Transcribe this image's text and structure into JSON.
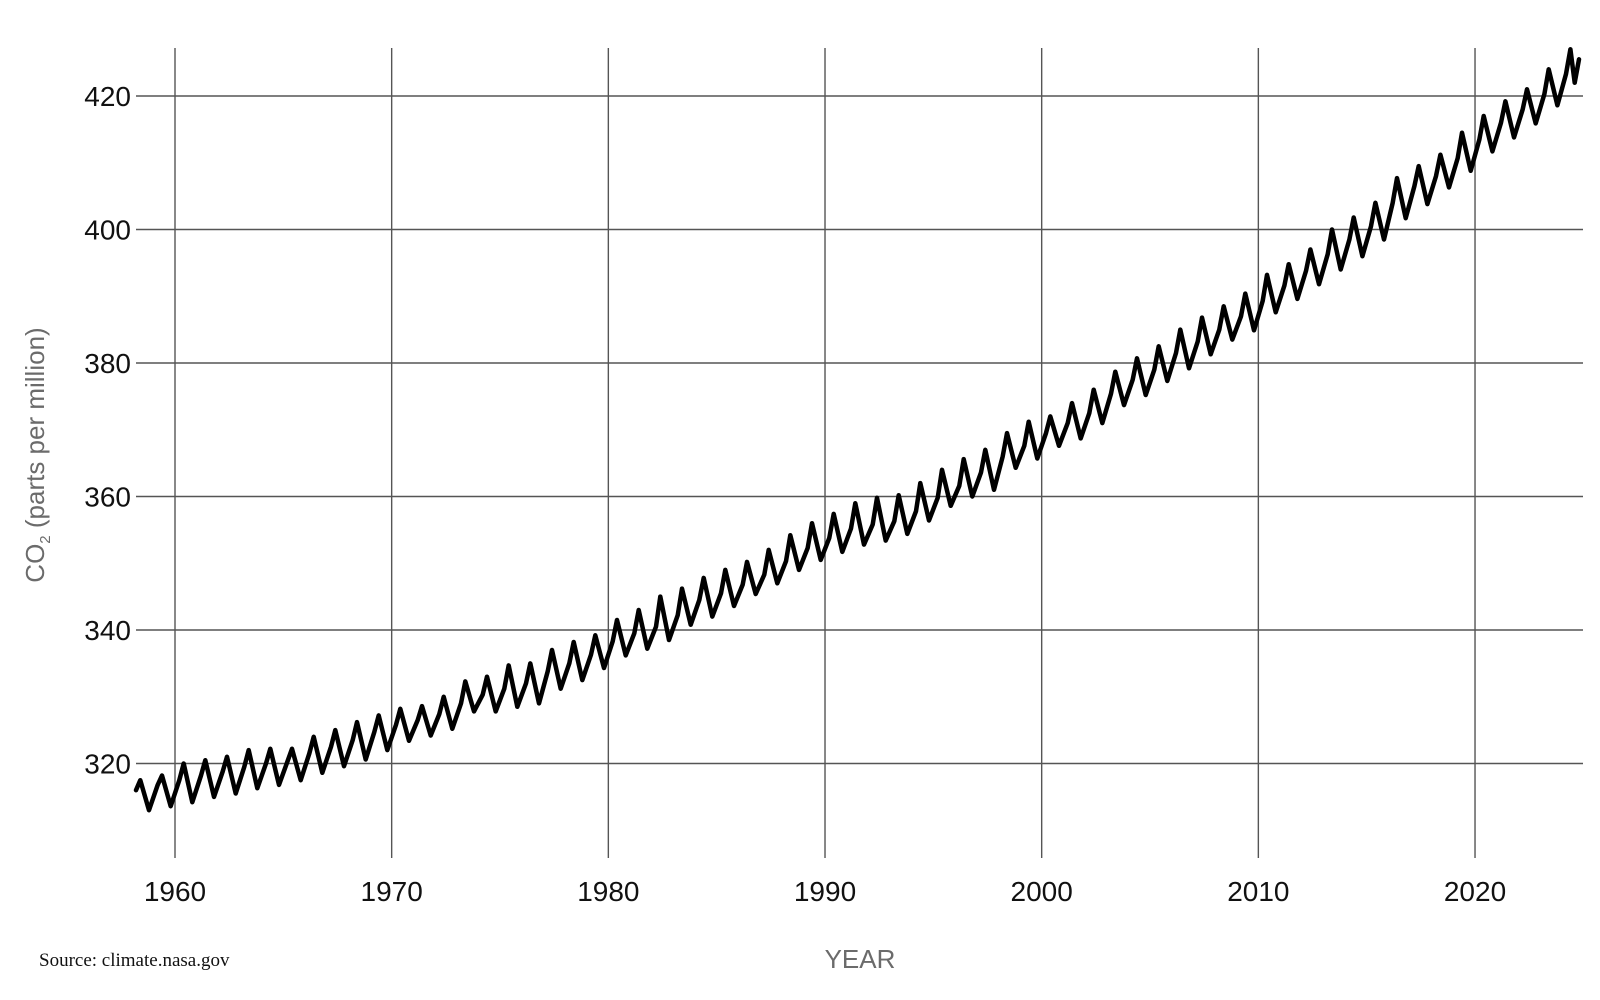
{
  "chart_data": {
    "type": "line",
    "title": "",
    "xlabel": "YEAR",
    "ylabel": "CO",
    "ylabel_subscript": "2",
    "ylabel_suffix": " (parts per million)",
    "xlim": [
      1958.2,
      2024.8
    ],
    "ylim": [
      305,
      427
    ],
    "x_ticks": [
      1960,
      1970,
      1980,
      1990,
      2000,
      2010,
      2020
    ],
    "y_ticks": [
      320,
      340,
      360,
      380,
      400,
      420
    ],
    "x_tick_labels": [
      "1960",
      "1970",
      "1980",
      "1990",
      "2000",
      "2010",
      "2020"
    ],
    "y_tick_labels": [
      "320",
      "340",
      "360",
      "380",
      "400",
      "420"
    ],
    "grid": true,
    "line_color": "#000000",
    "series": [
      {
        "x": [
          1958.2,
          1958.4,
          1958.8,
          1959.2,
          1959.4,
          1959.8,
          1960.2,
          1960.4,
          1960.8,
          1961.2,
          1961.4,
          1961.8,
          1962.2,
          1962.4,
          1962.8,
          1963.2,
          1963.4,
          1963.8,
          1964.2,
          1964.4,
          1964.8,
          1965.2,
          1965.4,
          1965.8,
          1966.2,
          1966.4,
          1966.8,
          1967.2,
          1967.4,
          1967.8,
          1968.2,
          1968.4,
          1968.8,
          1969.2,
          1969.4,
          1969.8,
          1970.2,
          1970.4,
          1970.8,
          1971.2,
          1971.4,
          1971.8,
          1972.2,
          1972.4,
          1972.8,
          1973.2,
          1973.4,
          1973.8,
          1974.2,
          1974.4,
          1974.8,
          1975.2,
          1975.4,
          1975.8,
          1976.2,
          1976.4,
          1976.8,
          1977.2,
          1977.4,
          1977.8,
          1978.2,
          1978.4,
          1978.8,
          1979.2,
          1979.4,
          1979.8,
          1980.2,
          1980.4,
          1980.8,
          1981.2,
          1981.4,
          1981.8,
          1982.2,
          1982.4,
          1982.8,
          1983.2,
          1983.4,
          1983.8,
          1984.2,
          1984.4,
          1984.8,
          1985.2,
          1985.4,
          1985.8,
          1986.2,
          1986.4,
          1986.8,
          1987.2,
          1987.4,
          1987.8,
          1988.2,
          1988.4,
          1988.8,
          1989.2,
          1989.4,
          1989.8,
          1990.2,
          1990.4,
          1990.8,
          1991.2,
          1991.4,
          1991.8,
          1992.2,
          1992.4,
          1992.8,
          1993.2,
          1993.4,
          1993.8,
          1994.2,
          1994.4,
          1994.8,
          1995.2,
          1995.4,
          1995.8,
          1996.2,
          1996.4,
          1996.8,
          1997.2,
          1997.4,
          1997.8,
          1998.2,
          1998.4,
          1998.8,
          1999.2,
          1999.4,
          1999.8,
          2000.2,
          2000.4,
          2000.8,
          2001.2,
          2001.4,
          2001.8,
          2002.2,
          2002.4,
          2002.8,
          2003.2,
          2003.4,
          2003.8,
          2004.2,
          2004.4,
          2004.8,
          2005.2,
          2005.4,
          2005.8,
          2006.2,
          2006.4,
          2006.8,
          2007.2,
          2007.4,
          2007.8,
          2008.2,
          2008.4,
          2008.8,
          2009.2,
          2009.4,
          2009.8,
          2010.2,
          2010.4,
          2010.8,
          2011.2,
          2011.4,
          2011.8,
          2012.2,
          2012.4,
          2012.8,
          2013.2,
          2013.4,
          2013.8,
          2014.2,
          2014.4,
          2014.8,
          2015.2,
          2015.4,
          2015.8,
          2016.2,
          2016.4,
          2016.8,
          2017.2,
          2017.4,
          2017.8,
          2018.2,
          2018.4,
          2018.8,
          2019.2,
          2019.4,
          2019.8,
          2020.2,
          2020.4,
          2020.8,
          2021.2,
          2021.4,
          2021.8,
          2022.2,
          2022.4,
          2022.8,
          2023.2,
          2023.4,
          2023.8,
          2024.2,
          2024.4,
          2024.6,
          2024.8
        ],
        "y": [
          316.0,
          317.5,
          313.0,
          316.8,
          318.2,
          313.6,
          317.5,
          320.0,
          314.2,
          318.2,
          320.5,
          315.0,
          318.8,
          321.0,
          315.5,
          319.5,
          322.0,
          316.3,
          320.0,
          322.2,
          316.8,
          320.4,
          322.2,
          317.5,
          321.5,
          324.0,
          318.6,
          322.5,
          325.0,
          319.6,
          323.5,
          326.2,
          320.6,
          324.7,
          327.2,
          322.0,
          325.8,
          328.2,
          323.4,
          326.5,
          328.6,
          324.2,
          327.4,
          330.0,
          325.2,
          329.0,
          332.3,
          327.8,
          330.3,
          333.0,
          327.8,
          331.2,
          334.7,
          328.5,
          332.0,
          335.0,
          329.0,
          333.8,
          337.0,
          331.2,
          335.0,
          338.2,
          332.5,
          336.3,
          339.2,
          334.3,
          338.3,
          341.5,
          336.2,
          339.5,
          343.0,
          337.2,
          340.5,
          345.0,
          338.5,
          342.2,
          346.2,
          340.8,
          344.5,
          347.8,
          342.0,
          345.5,
          349.0,
          343.6,
          346.8,
          350.2,
          345.4,
          348.3,
          352.0,
          347.0,
          350.3,
          354.2,
          349.0,
          352.3,
          356.0,
          350.5,
          353.8,
          357.4,
          351.7,
          355.2,
          359.0,
          352.8,
          355.8,
          359.8,
          353.4,
          356.3,
          360.2,
          354.4,
          357.8,
          362.0,
          356.4,
          359.8,
          364.0,
          358.6,
          361.6,
          365.6,
          360.0,
          363.6,
          367.0,
          361.0,
          366.0,
          369.5,
          364.3,
          367.6,
          371.2,
          365.7,
          369.5,
          372.0,
          367.6,
          371.0,
          374.0,
          368.7,
          372.5,
          376.0,
          371.0,
          375.4,
          378.7,
          373.7,
          377.5,
          380.7,
          375.2,
          379.0,
          382.5,
          377.3,
          381.5,
          385.0,
          379.2,
          383.2,
          386.8,
          381.3,
          385.0,
          388.5,
          383.5,
          387.0,
          390.4,
          384.9,
          389.3,
          393.2,
          387.6,
          391.6,
          394.8,
          389.6,
          393.8,
          397.0,
          391.8,
          396.3,
          400.0,
          394.0,
          398.5,
          401.8,
          396.0,
          400.5,
          404.0,
          398.5,
          404.0,
          407.7,
          401.7,
          406.5,
          409.5,
          403.8,
          408.0,
          411.2,
          406.3,
          410.7,
          414.5,
          408.8,
          413.5,
          417.0,
          411.7,
          416.0,
          419.2,
          413.8,
          418.0,
          421.0,
          415.9,
          420.3,
          424.0,
          418.6,
          423.3,
          427.0,
          422.0,
          425.5
        ]
      }
    ]
  },
  "source_note": "Source: climate.nasa.gov"
}
